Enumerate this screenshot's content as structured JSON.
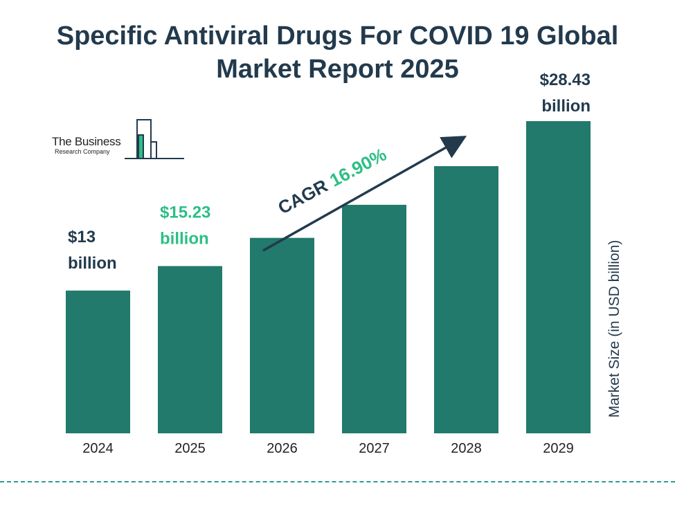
{
  "title_line1": "Specific Antiviral Drugs For COVID 19 Global",
  "title_line2": "Market Report 2025",
  "logo": {
    "line1": "The Business",
    "line2": "Research Company"
  },
  "cagr": {
    "label": "CAGR",
    "value": "16.90%"
  },
  "colors": {
    "bar": "#217a6b",
    "title": "#233a4d",
    "highlight": "#2bbf85",
    "dash": "#2a9d8f"
  },
  "chart_data": {
    "type": "bar",
    "categories": [
      "2024",
      "2025",
      "2026",
      "2027",
      "2028",
      "2029"
    ],
    "values": [
      13,
      15.23,
      17.8,
      20.81,
      24.33,
      28.43
    ],
    "data_labels": [
      {
        "index": 0,
        "line1": "$13",
        "line2": "billion",
        "color": "#233a4d"
      },
      {
        "index": 1,
        "line1": "$15.23",
        "line2": "billion",
        "color": "#2bbf85"
      },
      {
        "index": 5,
        "line1": "$28.43",
        "line2": "billion",
        "color": "#233a4d"
      }
    ],
    "ylabel": "Market Size (in USD billion)",
    "xlabel": "",
    "ylim": [
      0,
      30
    ],
    "grid": false
  }
}
